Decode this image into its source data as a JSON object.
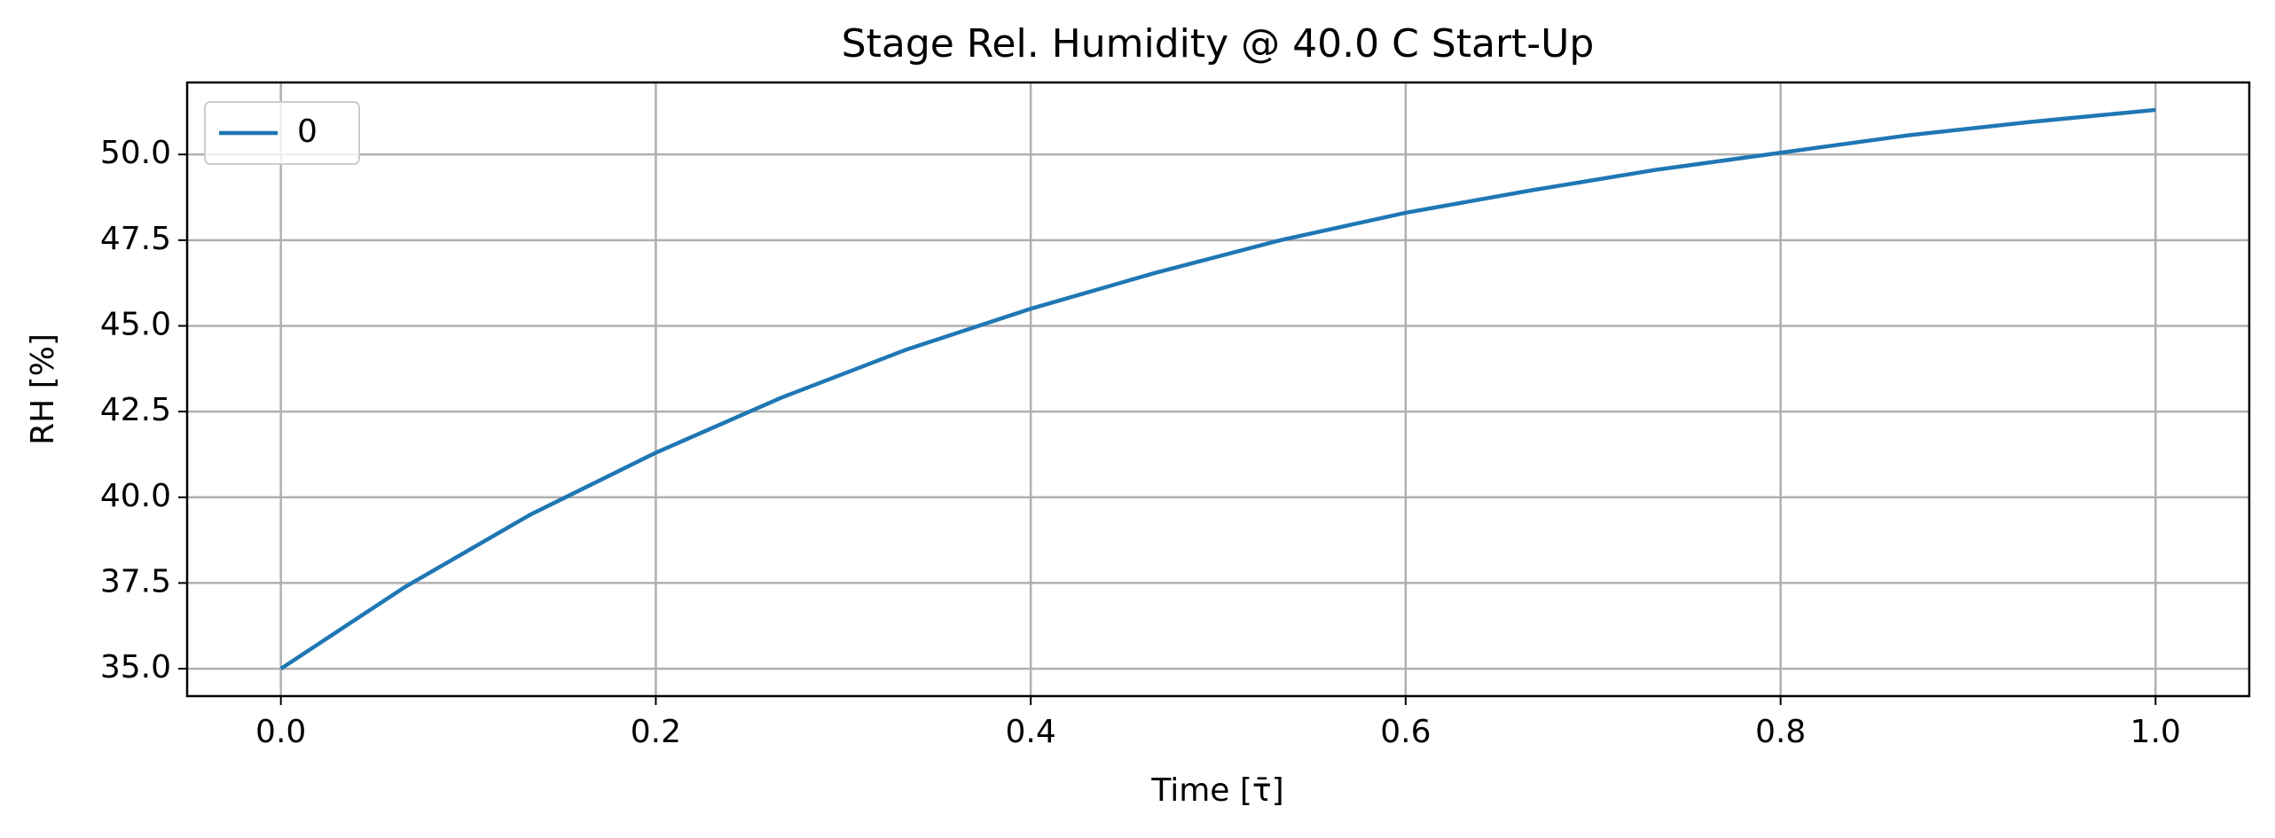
{
  "chart_data": {
    "type": "line",
    "title": "Stage Rel. Humidity @ 40.0 C Start-Up",
    "x_label": "Time [τ̄]",
    "y_label": "RH [%]",
    "x": [
      0.0,
      0.0667,
      0.1333,
      0.2,
      0.2667,
      0.3333,
      0.4,
      0.4667,
      0.5333,
      0.6,
      0.6667,
      0.7333,
      0.8,
      0.8667,
      0.9333,
      1.0
    ],
    "series": [
      {
        "name": "0",
        "color": "#1f77b4",
        "values": [
          35.0,
          37.4,
          39.5,
          41.3,
          42.9,
          44.3,
          45.5,
          46.55,
          47.5,
          48.3,
          48.95,
          49.55,
          50.05,
          50.55,
          50.95,
          51.3
        ]
      }
    ],
    "xlim": [
      -0.05,
      1.05
    ],
    "ylim": [
      34.2,
      52.1
    ],
    "xticks": [
      {
        "value": 0,
        "label": "0.0"
      },
      0.2,
      0.4,
      0.6,
      0.8,
      {
        "value": 1,
        "label": "1.0"
      }
    ],
    "yticks": [
      {
        "value": 35,
        "label": "35.0"
      },
      37.5,
      {
        "value": 40,
        "label": "40.0"
      },
      42.5,
      {
        "value": 45,
        "label": "45.0"
      },
      47.5,
      {
        "value": 50,
        "label": "50.0"
      }
    ],
    "grid": true,
    "legend": "upper left"
  }
}
